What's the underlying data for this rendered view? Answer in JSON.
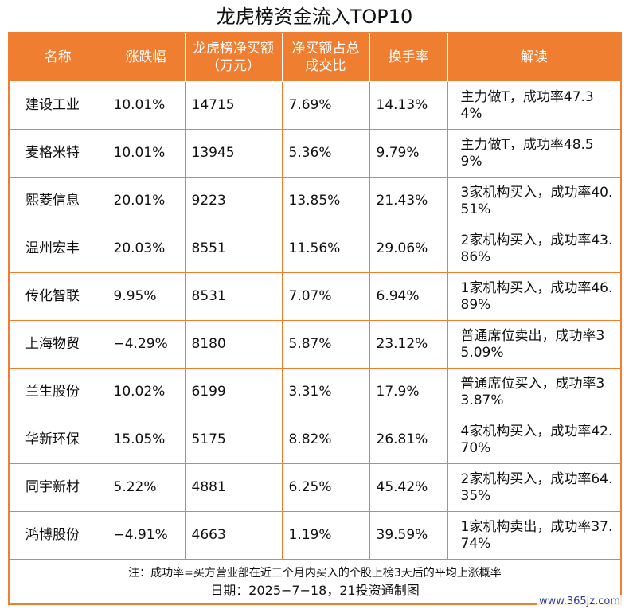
{
  "title": "龙虎榜资金流入TOP10",
  "table": {
    "headers": [
      "名称",
      "涨跌幅",
      "龙虎榜净买额（万元）",
      "净买额占总成交比",
      "换手率",
      "解读"
    ],
    "rows": [
      {
        "name": "建设工业",
        "change": "10.01%",
        "net_buy": "14715",
        "ratio": "7.69%",
        "turnover": "14.13%",
        "interp": "主力做T，成功率47.34%"
      },
      {
        "name": "麦格米特",
        "change": "10.01%",
        "net_buy": "13945",
        "ratio": "5.36%",
        "turnover": "9.79%",
        "interp": "主力做T，成功率48.59%"
      },
      {
        "name": "熙菱信息",
        "change": "20.01%",
        "net_buy": "9223",
        "ratio": "13.85%",
        "turnover": "21.43%",
        "interp": "3家机构买入，成功率40.51%"
      },
      {
        "name": "温州宏丰",
        "change": "20.03%",
        "net_buy": "8551",
        "ratio": "11.56%",
        "turnover": "29.06%",
        "interp": "2家机构买入，成功率43.86%"
      },
      {
        "name": "传化智联",
        "change": "9.95%",
        "net_buy": "8531",
        "ratio": "7.07%",
        "turnover": "6.94%",
        "interp": "1家机构买入，成功率46.89%"
      },
      {
        "name": "上海物贸",
        "change": "−4.29%",
        "net_buy": "8180",
        "ratio": "5.87%",
        "turnover": "23.12%",
        "interp": "普通席位卖出，成功率35.09%"
      },
      {
        "name": "兰生股份",
        "change": "10.02%",
        "net_buy": "6199",
        "ratio": "3.31%",
        "turnover": "17.9%",
        "interp": "普通席位买入，成功率33.87%"
      },
      {
        "name": "华新环保",
        "change": "15.05%",
        "net_buy": "5175",
        "ratio": "8.82%",
        "turnover": "26.81%",
        "interp": "4家机构买入，成功率42.70%"
      },
      {
        "name": "同宇新材",
        "change": "5.22%",
        "net_buy": "4881",
        "ratio": "6.25%",
        "turnover": "45.42%",
        "interp": "2家机构买入，成功率64.35%"
      },
      {
        "name": "鸿博股份",
        "change": "−4.91%",
        "net_buy": "4663",
        "ratio": "1.19%",
        "turnover": "39.59%",
        "interp": "1家机构卖出，成功率37.74%"
      }
    ]
  },
  "footer": {
    "note": "注：成功率=买方营业部在近三个月内买入的个股上榜3天后的平均上涨概率",
    "date": "日期：2025−7−18，21投资通制图"
  },
  "watermark": "www.365jz.com",
  "colors": {
    "accent": "#ef7e31",
    "header_text": "#ffffff"
  }
}
